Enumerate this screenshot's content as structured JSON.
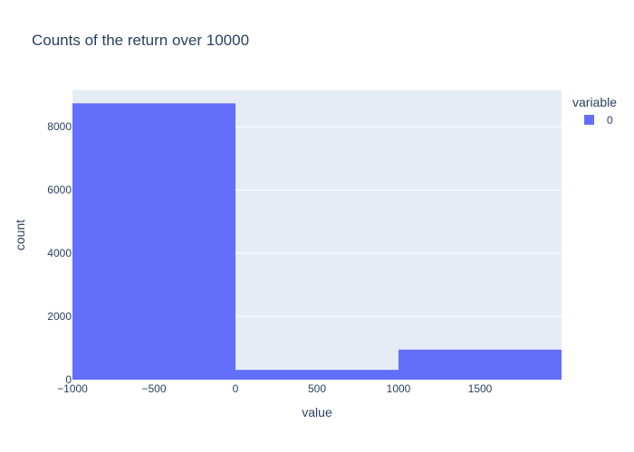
{
  "chart_data": {
    "type": "bar",
    "title": "Counts of the return over 10000",
    "xlabel": "value",
    "ylabel": "count",
    "bins": [
      {
        "x0": -1000,
        "x1": 0,
        "count": 8740
      },
      {
        "x0": 0,
        "x1": 1000,
        "count": 310
      },
      {
        "x0": 1000,
        "x1": 2000,
        "count": 950
      }
    ],
    "xlim": [
      -1000,
      2000
    ],
    "ylim": [
      0,
      9150
    ],
    "x_ticks": [
      -1000,
      -500,
      0,
      500,
      1000,
      1500
    ],
    "x_tick_labels": [
      "−1000",
      "−500",
      "0",
      "500",
      "1000",
      "1500"
    ],
    "y_ticks": [
      0,
      2000,
      4000,
      6000,
      8000
    ],
    "y_tick_labels": [
      "0",
      "2000",
      "4000",
      "6000",
      "8000"
    ],
    "grid": true,
    "legend": {
      "title": "variable",
      "placement": "top-right",
      "entries": [
        {
          "name": "0",
          "color": "#636efa"
        }
      ]
    }
  },
  "colors": {
    "bar": "#636efa",
    "plot_bg": "#e5ecf6",
    "grid": "#ffffff",
    "text": "#2a3f5f"
  }
}
